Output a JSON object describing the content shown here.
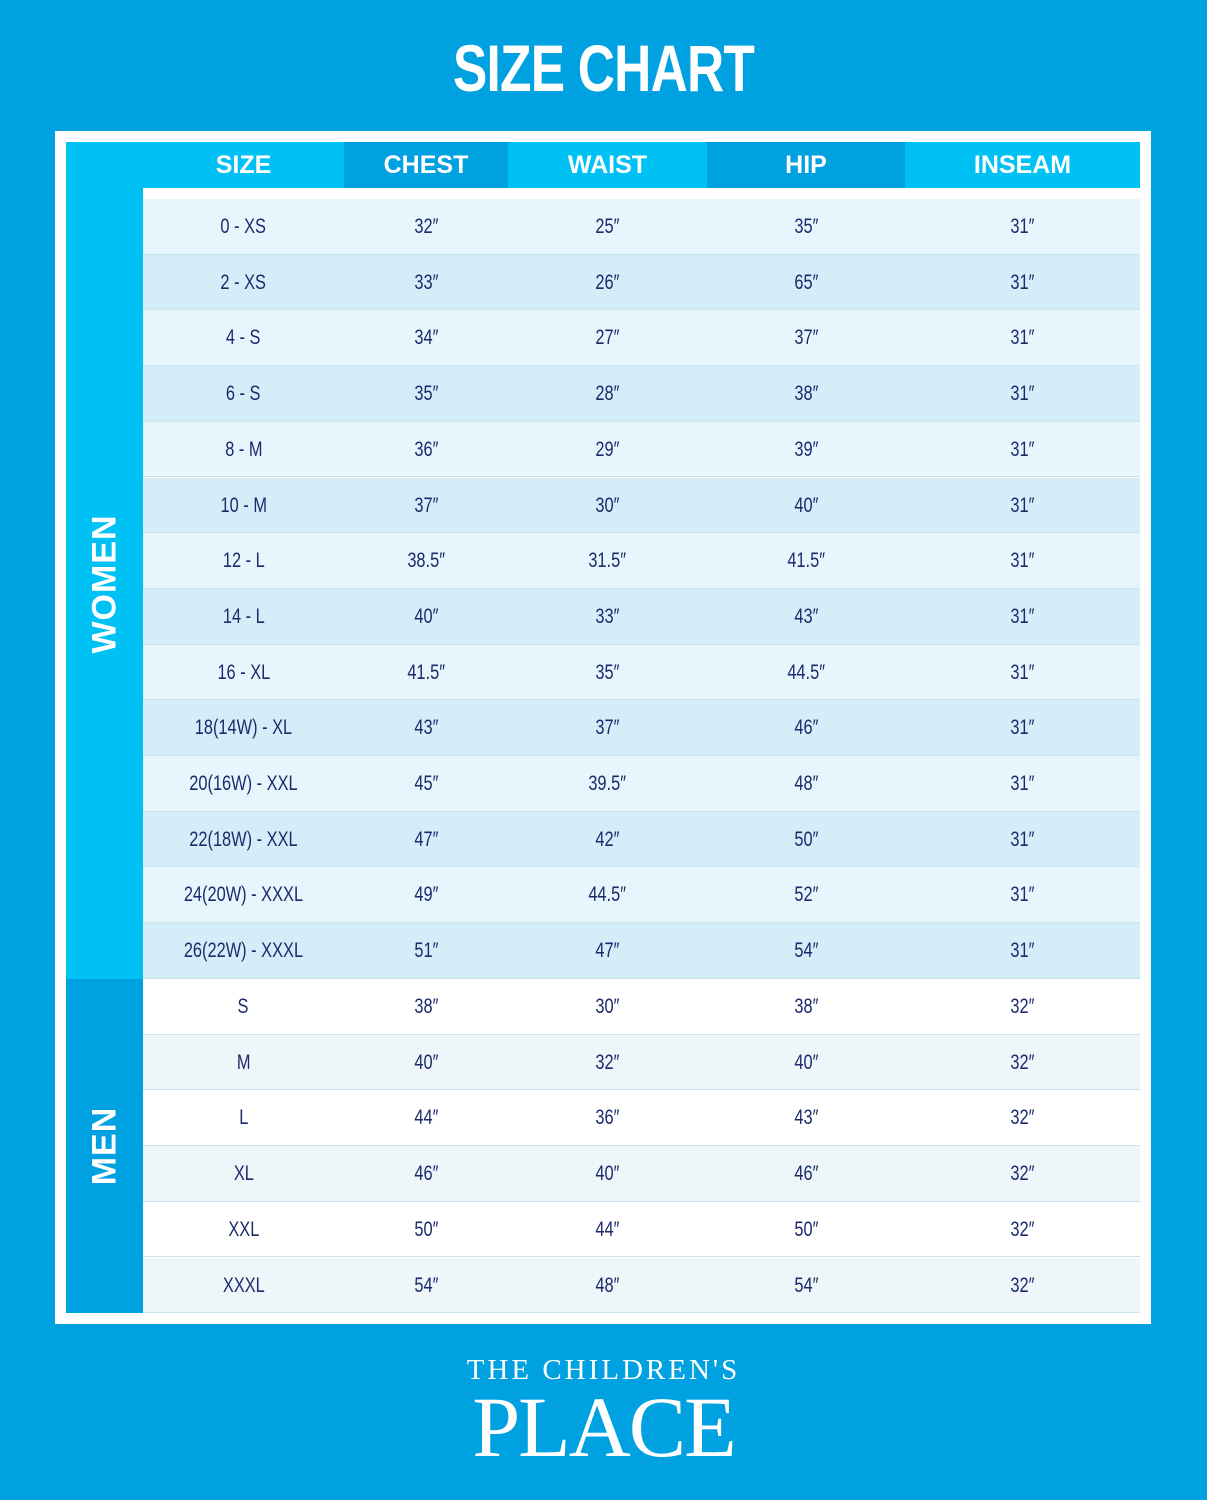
{
  "title": "SIZE CHART",
  "headers": [
    "SIZE",
    "CHEST",
    "WAIST",
    "HIP",
    "INSEAM"
  ],
  "groups": [
    {
      "label": "WOMEN",
      "rows": [
        [
          "0 - XS",
          "32″",
          "25″",
          "35″",
          "31″"
        ],
        [
          "2 - XS",
          "33″",
          "26″",
          "65″",
          "31″"
        ],
        [
          "4 - S",
          "34″",
          "27″",
          "37″",
          "31″"
        ],
        [
          "6 - S",
          "35″",
          "28″",
          "38″",
          "31″"
        ],
        [
          "8 - M",
          "36″",
          "29″",
          "39″",
          "31″"
        ],
        [
          "10 - M",
          "37″",
          "30″",
          "40″",
          "31″"
        ],
        [
          "12 - L",
          "38.5″",
          "31.5″",
          "41.5″",
          "31″"
        ],
        [
          "14 - L",
          "40″",
          "33″",
          "43″",
          "31″"
        ],
        [
          "16 - XL",
          "41.5″",
          "35″",
          "44.5″",
          "31″"
        ],
        [
          "18(14W) - XL",
          "43″",
          "37″",
          "46″",
          "31″"
        ],
        [
          "20(16W) - XXL",
          "45″",
          "39.5″",
          "48″",
          "31″"
        ],
        [
          "22(18W) - XXL",
          "47″",
          "42″",
          "50″",
          "31″"
        ],
        [
          "24(20W) - XXXL",
          "49″",
          "44.5″",
          "52″",
          "31″"
        ],
        [
          "26(22W) - XXXL",
          "51″",
          "47″",
          "54″",
          "31″"
        ]
      ]
    },
    {
      "label": "MEN",
      "rows": [
        [
          "S",
          "38″",
          "30″",
          "38″",
          "32″"
        ],
        [
          "M",
          "40″",
          "32″",
          "40″",
          "32″"
        ],
        [
          "L",
          "44″",
          "36″",
          "43″",
          "32″"
        ],
        [
          "XL",
          "46″",
          "40″",
          "46″",
          "32″"
        ],
        [
          "XXL",
          "50″",
          "44″",
          "50″",
          "32″"
        ],
        [
          "XXXL",
          "54″",
          "48″",
          "54″",
          "32″"
        ]
      ]
    }
  ],
  "logo": {
    "line1": "THE CHILDREN'S",
    "line2": "PLACE"
  },
  "colors": {
    "background": "#00a1e1",
    "header_light": "#00c1f3",
    "text": "#1b2a6b"
  }
}
